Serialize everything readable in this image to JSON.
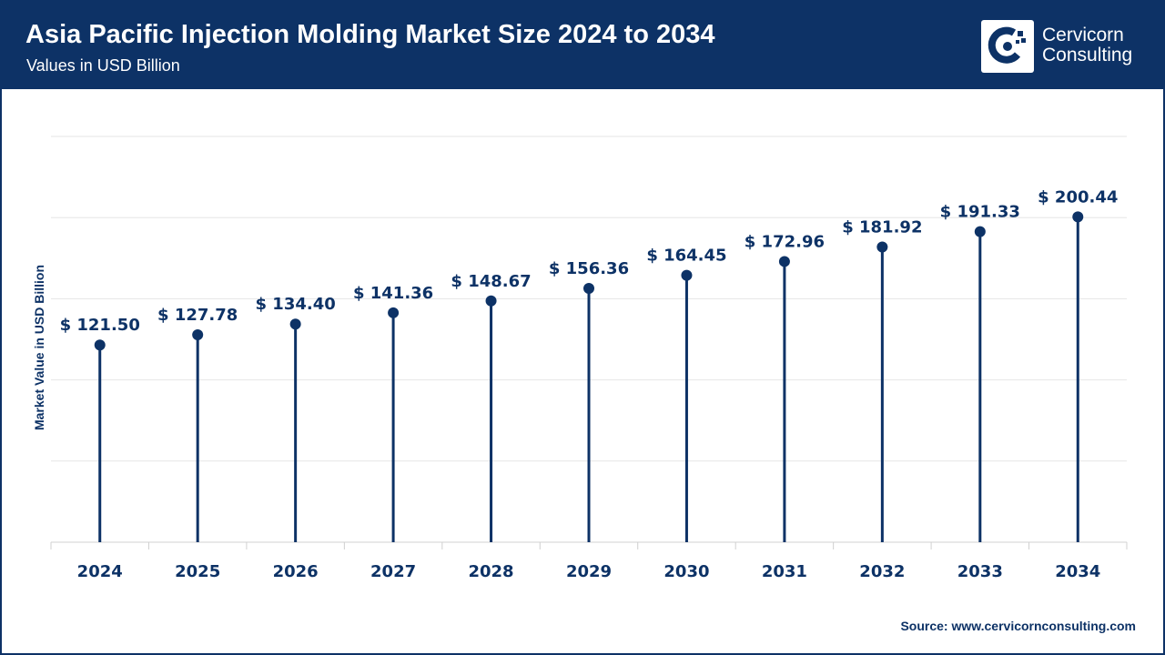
{
  "header": {
    "title": "Asia Pacific Injection Molding Market Size 2024 to 2034",
    "subtitle": "Values in USD Billion"
  },
  "brand": {
    "line1": "Cervicorn",
    "line2": "Consulting",
    "icon": "cervicorn-logo-icon"
  },
  "footer": {
    "source": "Source: www.cervicornconsulting.com"
  },
  "colors": {
    "primary": "#0d3266",
    "grid": "#e6e6e6",
    "axis": "#d0d0d0"
  },
  "chart_data": {
    "type": "lollipop",
    "title": "Asia Pacific Injection Molding Market Size 2024 to 2034",
    "xlabel": "",
    "ylabel": "Market Value in USD Billion",
    "categories": [
      "2024",
      "2025",
      "2026",
      "2027",
      "2028",
      "2029",
      "2030",
      "2031",
      "2032",
      "2033",
      "2034"
    ],
    "values": [
      121.5,
      127.78,
      134.4,
      141.36,
      148.67,
      156.36,
      164.45,
      172.96,
      181.92,
      191.33,
      200.44
    ],
    "data_labels": [
      "$ 121.50",
      "$ 127.78",
      "$ 134.40",
      "$ 141.36",
      "$ 148.67",
      "$ 156.36",
      "$ 164.45",
      "$ 172.96",
      "$ 181.92",
      "$ 191.33",
      "$ 200.44"
    ],
    "ylim": [
      0,
      250
    ],
    "grid": true
  }
}
